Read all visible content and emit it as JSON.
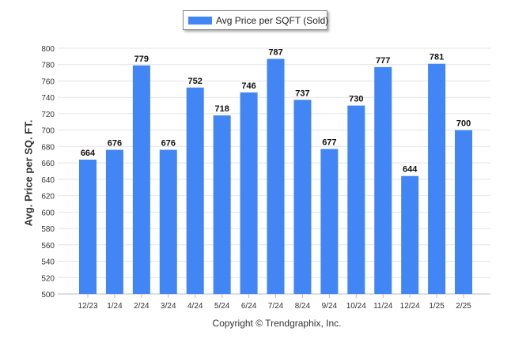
{
  "chart_data": {
    "type": "bar",
    "categories": [
      "12/23",
      "1/24",
      "2/24",
      "3/24",
      "4/24",
      "5/24",
      "6/24",
      "7/24",
      "8/24",
      "9/24",
      "10/24",
      "11/24",
      "12/24",
      "1/25",
      "2/25"
    ],
    "series": [
      {
        "name": "Avg Price per SQFT (Sold)",
        "values": [
          664,
          676,
          779,
          676,
          752,
          718,
          746,
          787,
          737,
          677,
          730,
          777,
          644,
          781,
          700
        ]
      }
    ],
    "data_labels": [
      "664",
      "676",
      "779",
      "676",
      "752",
      "718",
      "746",
      "787",
      "737",
      "677",
      "730",
      "777",
      "644",
      "781",
      "700"
    ],
    "ylabel": "Avg. Price per SQ. FT.",
    "xlabel": "",
    "ylim": [
      500,
      800
    ],
    "y_ticks": [
      500,
      520,
      540,
      560,
      580,
      600,
      620,
      640,
      660,
      680,
      700,
      720,
      740,
      760,
      780,
      800
    ],
    "grid": true,
    "legend": "top-center",
    "bar_color": "#4285f4"
  },
  "legend": {
    "label": "Avg Price per SQFT (Sold)"
  },
  "footer": {
    "copyright": "Copyright © Trendgraphix, Inc."
  }
}
